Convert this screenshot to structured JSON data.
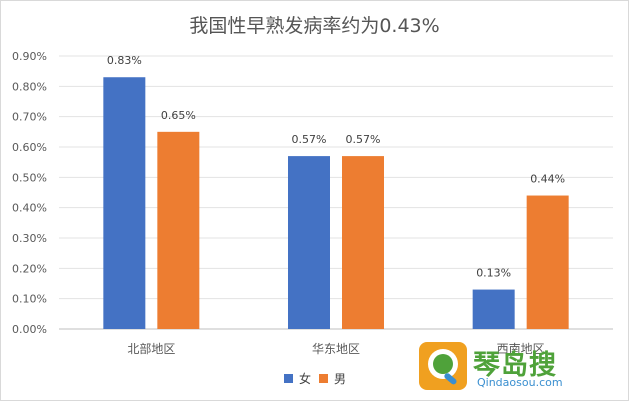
{
  "chart_data": {
    "type": "bar",
    "title": "我国性早熟发病率约为0.43%",
    "categories": [
      "北部地区",
      "华东地区",
      "西南地区"
    ],
    "series": [
      {
        "name": "女",
        "color": "#4472C4",
        "values": [
          0.83,
          0.57,
          0.13
        ],
        "labels": [
          "0.83%",
          "0.57%",
          "0.13%"
        ]
      },
      {
        "name": "男",
        "color": "#ED7D31",
        "values": [
          0.65,
          0.57,
          0.44
        ],
        "labels": [
          "0.65%",
          "0.57%",
          "0.44%"
        ]
      }
    ],
    "y_ticks": [
      "0.00%",
      "0.10%",
      "0.20%",
      "0.30%",
      "0.40%",
      "0.50%",
      "0.60%",
      "0.70%",
      "0.80%",
      "0.90%"
    ],
    "ylim": [
      0,
      0.9
    ],
    "grid": true,
    "legend_position": "bottom"
  },
  "watermark": {
    "name": "琴岛搜",
    "url": "Qindaosou.com"
  }
}
